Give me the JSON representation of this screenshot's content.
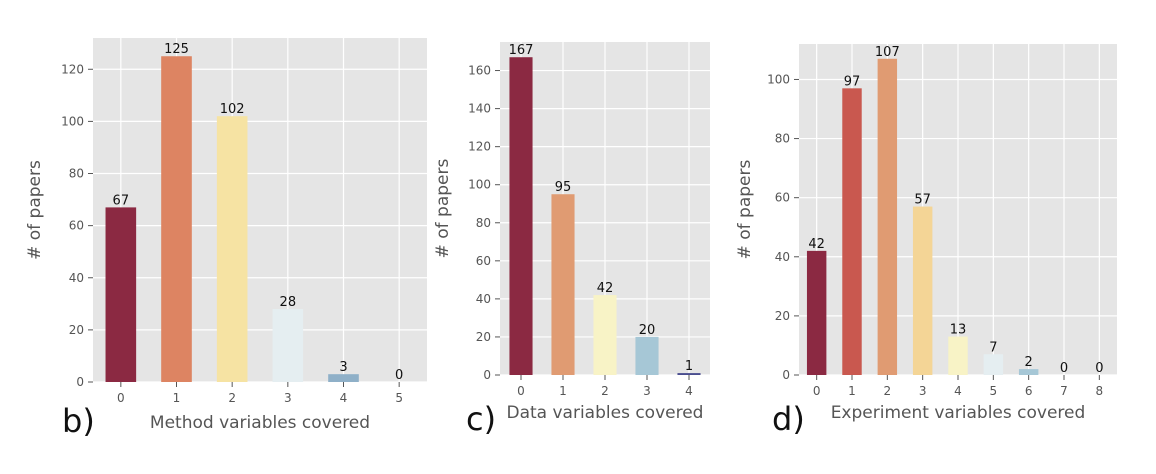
{
  "chart_data": [
    {
      "type": "bar",
      "panel_label": "b)",
      "xlabel": "Method variables covered",
      "ylabel": "# of papers",
      "categories": [
        "0",
        "1",
        "2",
        "3",
        "4",
        "5"
      ],
      "values": [
        67,
        125,
        102,
        28,
        3,
        0
      ],
      "value_labels": [
        "67",
        "125",
        "102",
        "28",
        "3",
        "0"
      ],
      "ylim": [
        0,
        132
      ],
      "yticks": [
        0,
        20,
        40,
        60,
        80,
        100,
        120
      ],
      "grid": true,
      "background": "#e5e5e5",
      "colors": [
        "#8b2942",
        "#dd8462",
        "#f6e3a3",
        "#e5eef1",
        "#8fb0c8",
        "#8fb0c8"
      ]
    },
    {
      "type": "bar",
      "panel_label": "c)",
      "xlabel": "Data variables covered",
      "ylabel": "# of papers",
      "categories": [
        "0",
        "1",
        "2",
        "3",
        "4"
      ],
      "values": [
        167,
        95,
        42,
        20,
        1
      ],
      "value_labels": [
        "167",
        "95",
        "42",
        "20",
        "1"
      ],
      "ylim": [
        0,
        175
      ],
      "yticks": [
        0,
        20,
        40,
        60,
        80,
        100,
        120,
        140,
        160
      ],
      "grid": true,
      "background": "#e5e5e5",
      "colors": [
        "#8b2942",
        "#e09b72",
        "#f8f3c6",
        "#a6c7d6",
        "#4a4d8f"
      ]
    },
    {
      "type": "bar",
      "panel_label": "d)",
      "xlabel": "Experiment variables covered",
      "ylabel": "# of papers",
      "categories": [
        "0",
        "1",
        "2",
        "3",
        "4",
        "5",
        "6",
        "7",
        "8"
      ],
      "values": [
        42,
        97,
        107,
        57,
        13,
        7,
        2,
        0,
        0
      ],
      "value_labels": [
        "42",
        "97",
        "107",
        "57",
        "13",
        "7",
        "2",
        "0",
        "0"
      ],
      "ylim": [
        0,
        112
      ],
      "yticks": [
        0,
        20,
        40,
        60,
        80,
        100
      ],
      "grid": true,
      "background": "#e5e5e5",
      "colors": [
        "#8b2942",
        "#c9584f",
        "#e09b72",
        "#f4d596",
        "#f8f3c6",
        "#e5eef1",
        "#a6c7d6",
        "#a6c7d6",
        "#a6c7d6"
      ]
    }
  ]
}
